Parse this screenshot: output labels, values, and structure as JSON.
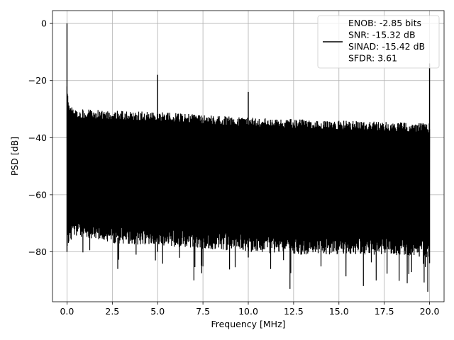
{
  "chart_data": {
    "type": "line",
    "title": "",
    "xlabel": "Frequency [MHz]",
    "ylabel": "PSD [dB]",
    "xlim": [
      -0.8,
      20.8
    ],
    "ylim": [
      -97.5,
      4.5
    ],
    "x_ticks": [
      0.0,
      2.5,
      5.0,
      7.5,
      10.0,
      12.5,
      15.0,
      17.5,
      20.0
    ],
    "x_tick_labels": [
      "0.0",
      "2.5",
      "5.0",
      "7.5",
      "10.0",
      "12.5",
      "15.0",
      "17.5",
      "20.0"
    ],
    "y_ticks": [
      0,
      -20,
      -40,
      -60,
      -80
    ],
    "y_tick_labels": [
      "0",
      "−20",
      "−40",
      "−60",
      "−80"
    ],
    "grid": true,
    "legend_position": "top-right",
    "series": [
      {
        "name": "ENOB: -2.85 bits\nSNR: -15.32 dB\nSINAD: -15.42 dB\nSFDR: 3.61",
        "color": "#000000",
        "description_points": {
          "x": [
            0.0,
            0.02,
            0.15,
            0.5,
            2.5,
            4.99,
            5.0,
            5.01,
            7.5,
            9.99,
            10.0,
            10.01,
            12.5,
            15.0,
            17.5,
            19.98,
            20.0
          ],
          "upper": [
            0,
            -22,
            -29,
            -30,
            -30.5,
            -31,
            -18,
            -31,
            -32,
            -33,
            -24,
            -33,
            -33.5,
            -34,
            -34.5,
            -35,
            -14
          ],
          "lower": [
            -82,
            -76,
            -74,
            -73,
            -75,
            -76,
            -77,
            -76,
            -77,
            -78,
            -78,
            -78,
            -79,
            -79,
            -79,
            -80,
            -87
          ]
        },
        "peaks": [
          {
            "x": 0.0,
            "y": 0
          },
          {
            "x": 5.0,
            "y": -18
          },
          {
            "x": 10.0,
            "y": -24
          },
          {
            "x": 20.0,
            "y": -14
          }
        ],
        "min_dips": [
          {
            "x": 2.8,
            "y": -86
          },
          {
            "x": 7.0,
            "y": -90
          },
          {
            "x": 12.3,
            "y": -93
          },
          {
            "x": 16.35,
            "y": -92
          },
          {
            "x": 19.9,
            "y": -94
          }
        ]
      }
    ],
    "legend_lines": [
      "ENOB: -2.85 bits",
      "SNR: -15.32 dB",
      "SINAD: -15.42 dB",
      "SFDR: 3.61"
    ]
  }
}
